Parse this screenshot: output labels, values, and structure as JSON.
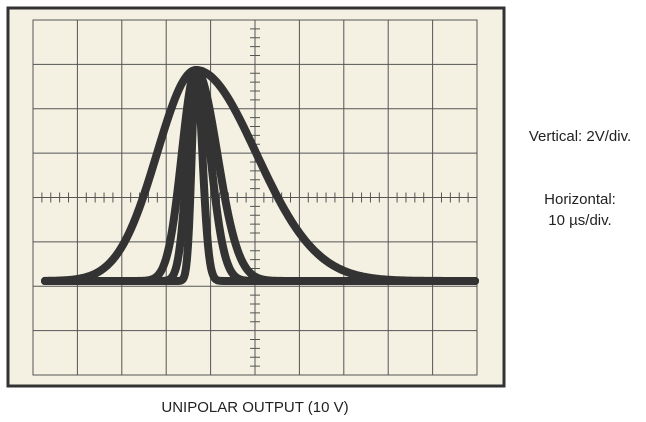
{
  "screen": {
    "vertical_scale": "Vertical: 2V/div.",
    "horizontal_scale_label": "Horizontal:",
    "horizontal_scale": "10 µs/div."
  },
  "caption": "UNIPOLAR OUTPUT (10 V)"
}
